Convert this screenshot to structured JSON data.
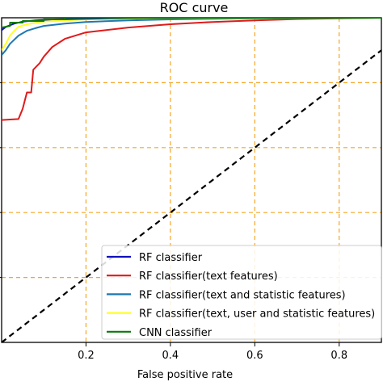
{
  "chart_data": {
    "type": "line",
    "title": "ROC curve",
    "xlabel": "False positive rate",
    "ylabel": "",
    "xlim": [
      0.0,
      0.9
    ],
    "ylim": [
      0.0,
      1.0
    ],
    "x_ticks": [
      "0.2",
      "0.4",
      "0.6",
      "0.8"
    ],
    "x_tick_values": [
      0.2,
      0.4,
      0.6,
      0.8
    ],
    "y_grid_values": [
      0.2,
      0.4,
      0.6,
      0.8
    ],
    "grid": true,
    "grid_color": "#f5a623",
    "legend_position": "bottom-right",
    "series": [
      {
        "name": "RF classifier",
        "color": "#1010c0",
        "points": [
          [
            0.0,
            0.962
          ],
          [
            0.01,
            0.972
          ],
          [
            0.03,
            0.982
          ],
          [
            0.05,
            0.988
          ],
          [
            0.08,
            0.992
          ],
          [
            0.12,
            0.995
          ],
          [
            0.2,
            0.997
          ],
          [
            0.3,
            0.999
          ],
          [
            0.5,
            1.0
          ],
          [
            0.9,
            1.0
          ]
        ]
      },
      {
        "name": "RF classifier(text features)",
        "color": "#e01a1a",
        "points": [
          [
            0.0,
            0.685
          ],
          [
            0.04,
            0.688
          ],
          [
            0.05,
            0.72
          ],
          [
            0.06,
            0.77
          ],
          [
            0.07,
            0.77
          ],
          [
            0.075,
            0.84
          ],
          [
            0.09,
            0.86
          ],
          [
            0.1,
            0.88
          ],
          [
            0.12,
            0.91
          ],
          [
            0.15,
            0.935
          ],
          [
            0.2,
            0.955
          ],
          [
            0.3,
            0.97
          ],
          [
            0.4,
            0.98
          ],
          [
            0.5,
            0.987
          ],
          [
            0.6,
            0.992
          ],
          [
            0.7,
            0.996
          ],
          [
            0.8,
            0.998
          ],
          [
            0.9,
            1.0
          ]
        ]
      },
      {
        "name": "RF classifier(text and statistic features)",
        "color": "#1f77b4",
        "points": [
          [
            0.0,
            0.885
          ],
          [
            0.01,
            0.9
          ],
          [
            0.02,
            0.92
          ],
          [
            0.04,
            0.945
          ],
          [
            0.06,
            0.96
          ],
          [
            0.08,
            0.968
          ],
          [
            0.1,
            0.975
          ],
          [
            0.15,
            0.982
          ],
          [
            0.2,
            0.987
          ],
          [
            0.3,
            0.992
          ],
          [
            0.4,
            0.995
          ],
          [
            0.6,
            0.998
          ],
          [
            0.9,
            1.0
          ]
        ]
      },
      {
        "name": "RF classifier(text, user and statistic features)",
        "color": "#ffff20",
        "points": [
          [
            0.0,
            0.9
          ],
          [
            0.01,
            0.92
          ],
          [
            0.02,
            0.945
          ],
          [
            0.03,
            0.96
          ],
          [
            0.04,
            0.972
          ],
          [
            0.06,
            0.98
          ],
          [
            0.1,
            0.988
          ],
          [
            0.2,
            0.995
          ],
          [
            0.4,
            0.999
          ],
          [
            0.9,
            1.0
          ]
        ]
      },
      {
        "name": "CNN classifier",
        "color": "#0a7a0a",
        "points": [
          [
            0.0,
            0.97
          ],
          [
            0.02,
            0.975
          ],
          [
            0.02,
            0.985
          ],
          [
            0.05,
            0.985
          ],
          [
            0.05,
            0.99
          ],
          [
            0.1,
            0.99
          ],
          [
            0.1,
            0.995
          ],
          [
            0.15,
            0.995
          ],
          [
            0.15,
            1.0
          ],
          [
            0.9,
            1.0
          ]
        ]
      }
    ],
    "diagonal": {
      "style": "dashed",
      "color": "#000000",
      "points": [
        [
          0.0,
          0.0
        ],
        [
          0.9,
          0.9
        ]
      ]
    }
  }
}
